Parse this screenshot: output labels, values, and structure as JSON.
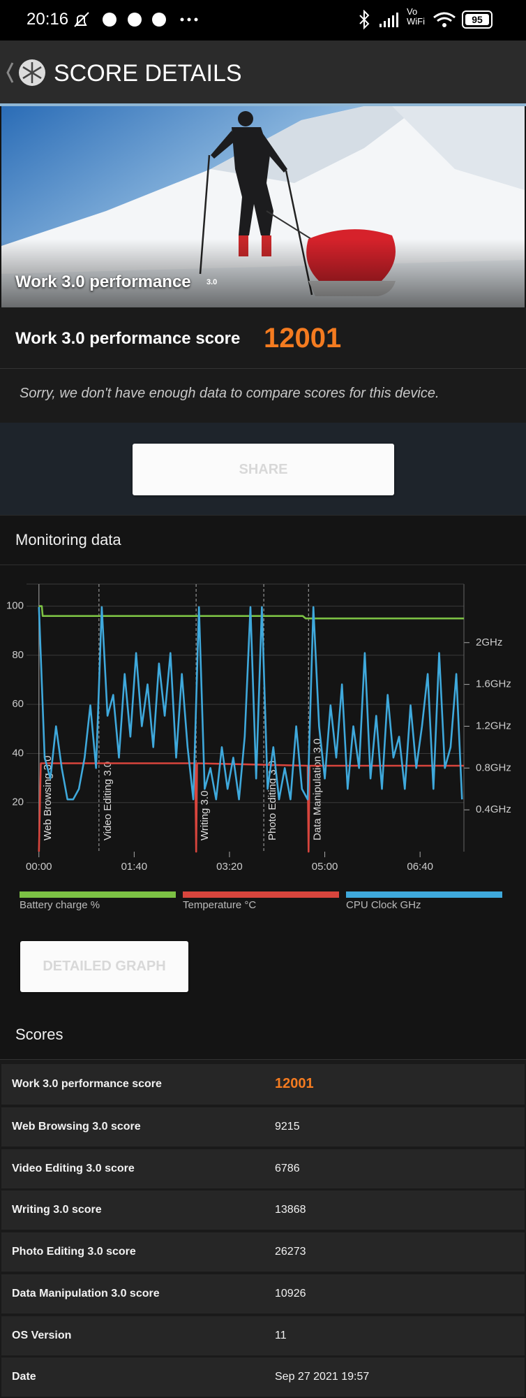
{
  "status_bar": {
    "time": "20:16",
    "vowifi": [
      "Vo",
      "WiFi"
    ],
    "battery": 95
  },
  "header": {
    "title": "SCORE DETAILS"
  },
  "hero": {
    "caption": "Work 3.0 performance",
    "badge": "3.0"
  },
  "score": {
    "label": "Work 3.0 performance score",
    "value": 12001
  },
  "message": "Sorry, we don't have enough data to compare scores for this device.",
  "share_button": "SHARE",
  "monitoring_title": "Monitoring data",
  "chart_data": {
    "type": "line",
    "xlim": [
      -13,
      446
    ],
    "ylim": [
      0,
      109
    ],
    "y2lim": [
      0,
      2.56
    ],
    "xticks": [
      {
        "value": 0,
        "label": "00:00"
      },
      {
        "value": 100,
        "label": "01:40"
      },
      {
        "value": 200,
        "label": "03:20"
      },
      {
        "value": 300,
        "label": "05:00"
      },
      {
        "value": 400,
        "label": "06:40"
      }
    ],
    "yticks": [
      20,
      40,
      60,
      80,
      100
    ],
    "y2ticks": [
      {
        "value": 0.4,
        "label": "0.4GHz"
      },
      {
        "value": 0.8,
        "label": "0.8GHz"
      },
      {
        "value": 1.2,
        "label": "1.2GHz"
      },
      {
        "value": 1.6,
        "label": "1.6GHz"
      },
      {
        "value": 2,
        "label": "2GHz"
      }
    ],
    "grid": true,
    "segments": [
      {
        "label": "Web Browsing 3.0",
        "start": 0
      },
      {
        "label": "Video Editing 3.0",
        "start": 63
      },
      {
        "label": "Writing 3.0",
        "start": 165
      },
      {
        "label": "Photo Editing 3.0",
        "start": 236
      },
      {
        "label": "Data Manipulation 3.0",
        "start": 283
      }
    ],
    "series": [
      {
        "name": "Battery charge %",
        "color": "#7cc144",
        "x": [
          0,
          3,
          4,
          277,
          280,
          446
        ],
        "values": [
          100,
          100,
          96,
          96,
          95,
          95
        ]
      },
      {
        "name": "Temperature °C",
        "color": "#d8453d",
        "x": [
          0,
          2,
          164,
          165,
          166,
          282,
          283,
          284,
          446
        ],
        "values": [
          0,
          36,
          36,
          0,
          36,
          35,
          0,
          35,
          35
        ]
      },
      {
        "name": "CPU Clock GHz",
        "color": "#3fa9dc",
        "axis": "y2",
        "x": [
          0,
          6,
          12,
          18,
          24,
          30,
          36,
          42,
          48,
          54,
          60,
          66,
          72,
          78,
          84,
          90,
          96,
          102,
          108,
          114,
          120,
          126,
          132,
          138,
          144,
          150,
          156,
          162,
          168,
          174,
          180,
          186,
          192,
          198,
          204,
          210,
          216,
          222,
          228,
          234,
          240,
          246,
          252,
          258,
          264,
          270,
          276,
          282,
          288,
          294,
          300,
          306,
          312,
          318,
          324,
          330,
          336,
          342,
          348,
          354,
          360,
          366,
          372,
          378,
          384,
          390,
          396,
          402,
          408,
          414,
          420,
          426,
          432,
          438,
          444
        ],
        "values": [
          2.34,
          0.9,
          0.7,
          1.2,
          0.8,
          0.5,
          0.5,
          0.6,
          0.9,
          1.4,
          0.8,
          2.34,
          1.3,
          1.5,
          0.9,
          1.7,
          1.1,
          1.9,
          1.2,
          1.6,
          1.0,
          1.8,
          1.3,
          1.9,
          0.9,
          1.7,
          1.0,
          0.5,
          2.34,
          0.6,
          0.8,
          0.5,
          1.0,
          0.6,
          0.9,
          0.5,
          1.1,
          2.34,
          0.7,
          2.34,
          0.6,
          1.0,
          0.5,
          0.8,
          0.5,
          1.2,
          0.6,
          0.5,
          2.34,
          1.2,
          0.7,
          1.4,
          0.9,
          1.6,
          0.6,
          1.2,
          0.8,
          1.9,
          0.7,
          1.3,
          0.6,
          1.5,
          0.9,
          1.1,
          0.6,
          1.4,
          0.8,
          1.2,
          1.7,
          0.6,
          1.9,
          0.8,
          1.0,
          1.7,
          0.5
        ]
      }
    ]
  },
  "detailed_graph_button": "DETAILED GRAPH",
  "scores": {
    "title": "Scores",
    "rows": [
      [
        "Work 3.0 performance score",
        12001
      ],
      [
        "Web Browsing 3.0 score",
        9215
      ],
      [
        "Video Editing 3.0 score",
        6786
      ],
      [
        "Writing 3.0 score",
        13868
      ],
      [
        "Photo Editing 3.0 score",
        26273
      ],
      [
        "Data Manipulation 3.0 score",
        10926
      ],
      [
        "OS Version",
        11
      ],
      [
        "Date",
        "Sep 27 2021 19:57"
      ]
    ]
  }
}
